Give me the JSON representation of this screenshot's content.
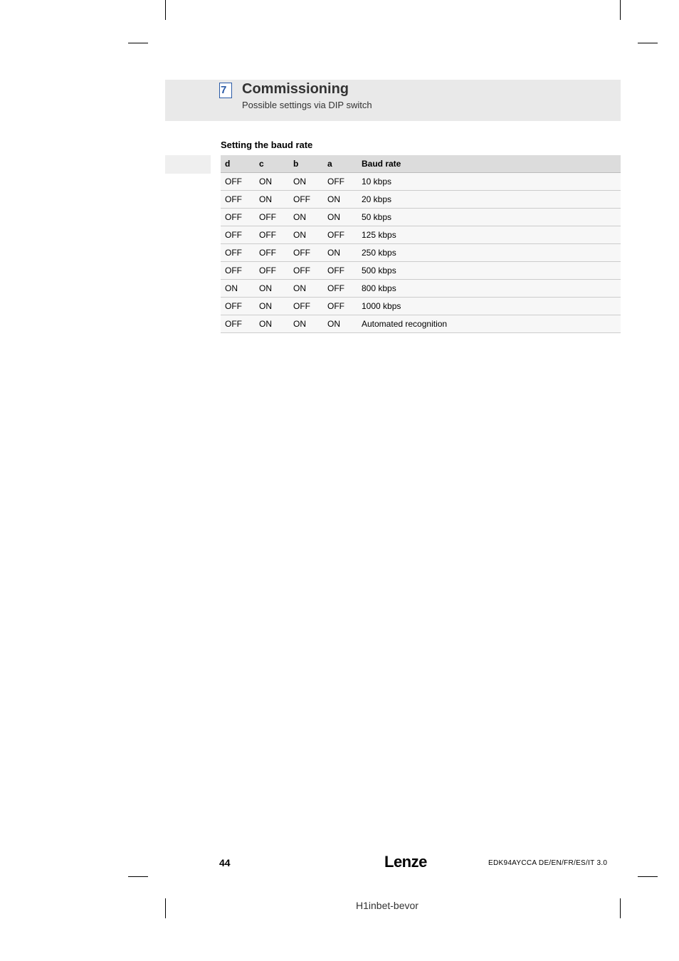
{
  "chapter": {
    "number": "7",
    "title": "Commissioning",
    "subtitle": "Possible settings via DIP switch"
  },
  "section": {
    "title": "Setting the baud rate"
  },
  "table": {
    "columns": [
      "d",
      "c",
      "b",
      "a",
      "Baud rate"
    ],
    "rows": [
      [
        "OFF",
        "ON",
        "ON",
        "OFF",
        "10 kbps"
      ],
      [
        "OFF",
        "ON",
        "OFF",
        "ON",
        "20 kbps"
      ],
      [
        "OFF",
        "OFF",
        "ON",
        "ON",
        "50 kbps"
      ],
      [
        "OFF",
        "OFF",
        "ON",
        "OFF",
        "125 kbps"
      ],
      [
        "OFF",
        "OFF",
        "OFF",
        "ON",
        "250 kbps"
      ],
      [
        "OFF",
        "OFF",
        "OFF",
        "OFF",
        "500 kbps"
      ],
      [
        "ON",
        "ON",
        "ON",
        "OFF",
        "800 kbps"
      ],
      [
        "OFF",
        "ON",
        "OFF",
        "OFF",
        "1000 kbps"
      ],
      [
        "OFF",
        "ON",
        "ON",
        "ON",
        "Automated recognition"
      ]
    ],
    "header_bg": "#dcdcdc",
    "row_bg": "#f7f7f7",
    "border_color": "#cccccc",
    "font_size": 12
  },
  "footer": {
    "page_number": "44",
    "brand": "Lenze",
    "doc_code": "EDK94AYCCA   DE/EN/FR/ES/IT   3.0",
    "footnote": "H1inbet-bevor"
  },
  "colors": {
    "header_band": "#e9e9e9",
    "accent_blue": "#2a5aa6",
    "left_accent": "#efefef",
    "background": "#ffffff"
  }
}
